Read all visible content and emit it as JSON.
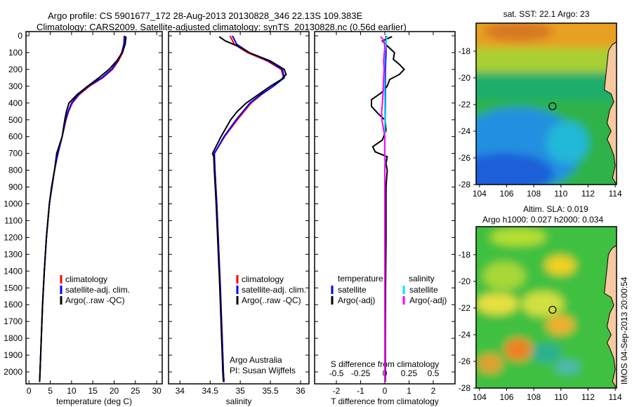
{
  "title": {
    "line1": "Argo profile: CS 5901677_172 28-Aug-2013 20130828_346 22.13S 109.383E",
    "line2": "Climatology: CARS2009. Satellite-adjusted climatology: synTS_20130828.nc (0.56d earlier)"
  },
  "colors": {
    "climatology": "#ff0000",
    "satellite": "#0000ff",
    "argo": "#000000",
    "sal_satellite": "#00e5ee",
    "sal_argo": "#ff00ff",
    "land": "#f7c9a0"
  },
  "depth_axis": {
    "ylim": [
      0,
      2070
    ],
    "ticks": [
      0,
      100,
      200,
      300,
      400,
      500,
      600,
      700,
      800,
      900,
      1000,
      1100,
      1200,
      1300,
      1400,
      1500,
      1600,
      1700,
      1800,
      1900,
      2000
    ]
  },
  "chart_data": [
    {
      "type": "line",
      "id": "temperature",
      "xlabel": "temperature (deg C)",
      "xlim": [
        -0.7,
        31.3
      ],
      "xticks": [
        0,
        5,
        10,
        15,
        20,
        25,
        30
      ],
      "legend": [
        "climatology",
        "satellite-adj. clim.",
        "Argo(..raw -QC)"
      ],
      "series": [
        {
          "name": "climatology",
          "depth": [
            0,
            50,
            100,
            150,
            200,
            250,
            300,
            350,
            400,
            450,
            500,
            600,
            700,
            800,
            900,
            1000,
            1200,
            1400,
            1600,
            1800,
            2000,
            2060
          ],
          "values": [
            22.6,
            22.5,
            22.0,
            21.0,
            19.6,
            17.3,
            14.2,
            11.8,
            10.2,
            9.3,
            8.7,
            7.8,
            6.8,
            6.0,
            5.3,
            4.8,
            4.1,
            3.6,
            3.2,
            2.9,
            2.6,
            2.5
          ]
        },
        {
          "name": "satellite-adj. clim.",
          "depth": [
            0,
            50,
            100,
            150,
            200,
            250,
            300,
            350,
            400,
            450,
            500,
            600,
            700,
            800,
            900,
            1000,
            1200,
            1400,
            1600,
            1800,
            2000,
            2060
          ],
          "values": [
            22.4,
            22.3,
            21.8,
            20.8,
            19.4,
            17.1,
            14.0,
            11.6,
            10.0,
            9.2,
            8.6,
            7.8,
            6.8,
            6.0,
            5.3,
            4.8,
            4.1,
            3.6,
            3.2,
            2.9,
            2.6,
            2.5
          ]
        },
        {
          "name": "Argo(..raw -QC)",
          "depth": [
            5,
            50,
            100,
            150,
            200,
            250,
            300,
            350,
            400,
            450,
            500,
            600,
            700,
            800,
            900,
            1000,
            1200,
            1400,
            1600,
            1800,
            2000,
            2060
          ],
          "values": [
            22.8,
            22.6,
            21.9,
            20.6,
            18.8,
            16.4,
            13.8,
            11.3,
            9.4,
            8.8,
            8.4,
            7.8,
            6.5,
            6.0,
            5.4,
            4.8,
            4.1,
            3.6,
            3.2,
            2.9,
            2.6,
            2.5
          ]
        }
      ]
    },
    {
      "type": "line",
      "id": "salinity",
      "xlabel": "salinity",
      "xlim": [
        33.81,
        36.14
      ],
      "xticks": [
        34,
        34.5,
        35,
        35.5,
        36
      ],
      "legend": [
        "climatology",
        "satellite-adj. clim.",
        "Argo(..raw -QC)"
      ],
      "annotation": [
        "Argo Australia",
        "PI: Susan Wijffels"
      ],
      "series": [
        {
          "name": "climatology",
          "depth": [
            0,
            50,
            100,
            150,
            200,
            250,
            300,
            350,
            400,
            500,
            600,
            700,
            800,
            1000,
            1500,
            2000,
            2060
          ],
          "values": [
            34.83,
            34.9,
            35.12,
            35.45,
            35.68,
            35.72,
            35.55,
            35.35,
            35.18,
            34.95,
            34.74,
            34.57,
            34.58,
            34.61,
            34.67,
            34.72,
            34.73
          ]
        },
        {
          "name": "satellite-adj. clim.",
          "depth": [
            0,
            50,
            100,
            150,
            200,
            250,
            300,
            350,
            400,
            500,
            600,
            700,
            800,
            1000,
            1500,
            2000,
            2060
          ],
          "values": [
            34.87,
            34.94,
            35.15,
            35.47,
            35.7,
            35.73,
            35.55,
            35.34,
            35.16,
            34.93,
            34.73,
            34.57,
            34.58,
            34.61,
            34.67,
            34.72,
            34.73
          ]
        },
        {
          "name": "Argo(..raw -QC)",
          "depth": [
            5,
            30,
            60,
            100,
            150,
            200,
            230,
            260,
            300,
            350,
            400,
            450,
            500,
            600,
            700,
            720,
            800,
            1000,
            1500,
            2000,
            2060
          ],
          "values": [
            34.65,
            34.75,
            34.95,
            35.15,
            35.5,
            35.73,
            35.76,
            35.68,
            35.5,
            35.3,
            35.1,
            34.95,
            34.84,
            34.68,
            34.54,
            34.56,
            34.57,
            34.6,
            34.66,
            34.71,
            34.72
          ]
        }
      ]
    },
    {
      "type": "line",
      "id": "difference",
      "xlabel": "T difference from climatology",
      "xlim": [
        -2.9,
        2.9
      ],
      "xticks": [
        -2,
        -1,
        0,
        1,
        2
      ],
      "top_xlabel": "S difference from climatology",
      "top_xticks": [
        -0.5,
        -0.25,
        0,
        0.25,
        0.5
      ],
      "top_xtick_labels": [
        "-0.5",
        "-0.25",
        "0",
        "0.25",
        "0.5"
      ],
      "s_to_t_scale": 4,
      "legend": {
        "temperature_header": "temperature",
        "salinity_header": "salinity",
        "items": [
          "satellite",
          "Argo(-adj)",
          "satellite",
          "Argo(-adj)"
        ]
      },
      "series": [
        {
          "name": "temperature satellite",
          "depth": [
            0,
            100,
            200,
            400,
            600,
            800,
            1000,
            1500,
            2000,
            2060
          ],
          "values": [
            0.05,
            0.05,
            0.02,
            0.02,
            0.0,
            0.0,
            0.0,
            0.0,
            0.0,
            0.0
          ]
        },
        {
          "name": "temperature Argo(-adj)",
          "depth": [
            5,
            30,
            60,
            100,
            140,
            170,
            200,
            230,
            260,
            300,
            340,
            380,
            420,
            460,
            500,
            560,
            620,
            660,
            690,
            720,
            760,
            800,
            900,
            1000,
            1200,
            1500,
            1800,
            2000,
            2060
          ],
          "values": [
            0.3,
            -0.1,
            0.1,
            0.4,
            0.35,
            0.6,
            0.8,
            0.6,
            0.2,
            0.1,
            -0.15,
            -0.55,
            -0.55,
            -0.3,
            0.0,
            0.05,
            -0.1,
            -0.5,
            -0.4,
            0.1,
            0.05,
            0.1,
            0.05,
            0.05,
            0.05,
            0.03,
            0.02,
            0.02,
            0.02
          ]
        },
        {
          "name": "salinity satellite",
          "depth": [
            0,
            50,
            100,
            200,
            400,
            700,
            1000,
            1500,
            2000,
            2060
          ],
          "values": [
            0.08,
            0.05,
            0.0,
            -0.02,
            0.0,
            0.0,
            0.0,
            0.0,
            0.0,
            0.0
          ]
        },
        {
          "name": "salinity Argo(-adj)",
          "depth": [
            5,
            20,
            40,
            70,
            100,
            150,
            200,
            250,
            300,
            350,
            400,
            450,
            500,
            560,
            600,
            700,
            750,
            800,
            1000,
            1500,
            2000,
            2060
          ],
          "values": [
            -0.18,
            -0.08,
            -0.02,
            0.0,
            -0.02,
            -0.05,
            -0.03,
            -0.05,
            -0.06,
            -0.08,
            -0.1,
            -0.13,
            -0.12,
            -0.05,
            0.0,
            -0.01,
            0.02,
            0.0,
            0.0,
            0.0,
            0.0,
            0.0
          ]
        }
      ]
    },
    {
      "type": "heatmap",
      "id": "sst-map",
      "title": "sat. SST: 22.1  Argo: 23",
      "xlim": [
        103.75,
        114.1
      ],
      "ylim": [
        -28,
        -15.9
      ],
      "xticks": [
        104,
        106,
        108,
        110,
        112,
        114
      ],
      "yticks": [
        -18,
        -20,
        -22,
        -24,
        -26,
        -28
      ],
      "argo_position": {
        "lon": 109.383,
        "lat": -22.13
      }
    },
    {
      "type": "heatmap",
      "id": "sla-map",
      "title_line1": "Altim. SLA: 0.019",
      "title_line2": "Argo h1000: 0.027 h2000: 0.034",
      "xlim": [
        103.75,
        114.1
      ],
      "ylim": [
        -28,
        -15.9
      ],
      "xticks": [
        104,
        106,
        108,
        110,
        112,
        114
      ],
      "yticks": [
        -18,
        -20,
        -22,
        -24,
        -26,
        -28
      ],
      "argo_position": {
        "lon": 109.383,
        "lat": -22.13
      }
    }
  ],
  "footer_stamp": "IMOS 04-Sep-2013 20:00:54"
}
